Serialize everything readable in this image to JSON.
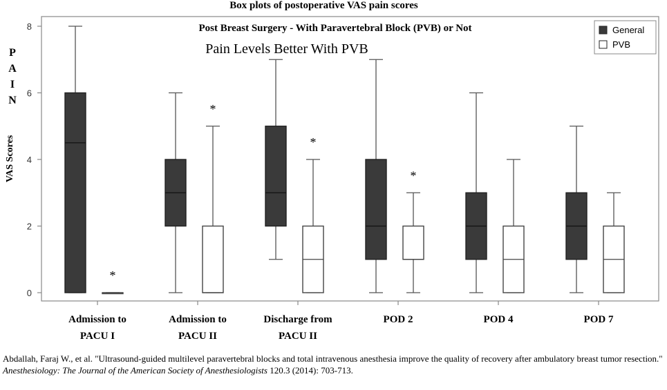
{
  "figure_title": "Box plots of postoperative VAS pain scores",
  "pain_letters": [
    "P",
    "A",
    "I",
    "N"
  ],
  "chart_data": {
    "type": "box",
    "title": "Post Breast Surgery - With Paravertebral Block (PVB) or Not",
    "subtitle": "Pain Levels Better With PVB",
    "ylabel": "VAS Scores",
    "xlabel": "",
    "ylim": [
      0,
      8
    ],
    "yticks": [
      0,
      2,
      4,
      6,
      8
    ],
    "grid": false,
    "legend_position": "top-right",
    "categories": [
      [
        "Admission to",
        "PACU I"
      ],
      [
        "Admission to",
        "PACU II"
      ],
      [
        "Discharge from",
        "PACU II"
      ],
      [
        "POD 2"
      ],
      [
        "POD 4"
      ],
      [
        "POD 7"
      ]
    ],
    "series": [
      {
        "name": "General",
        "color": "#3a3a3a",
        "boxes": [
          {
            "min": 0,
            "q1": 0,
            "median": 4.5,
            "q3": 6,
            "max": 8
          },
          {
            "min": 0,
            "q1": 2,
            "median": 3,
            "q3": 4,
            "max": 6
          },
          {
            "min": 1,
            "q1": 2,
            "median": 3,
            "q3": 5,
            "max": 7
          },
          {
            "min": 0,
            "q1": 1,
            "median": 2,
            "q3": 4,
            "max": 7
          },
          {
            "min": 0,
            "q1": 1,
            "median": 2,
            "q3": 3,
            "max": 6
          },
          {
            "min": 0,
            "q1": 1,
            "median": 2,
            "q3": 3,
            "max": 5
          }
        ]
      },
      {
        "name": "PVB",
        "color": "#ffffff",
        "boxes": [
          {
            "min": 0,
            "q1": 0,
            "median": 0,
            "q3": 0,
            "max": 0
          },
          {
            "min": 0,
            "q1": 0,
            "median": 0,
            "q3": 2,
            "max": 5
          },
          {
            "min": 0,
            "q1": 0,
            "median": 1,
            "q3": 2,
            "max": 4
          },
          {
            "min": 0,
            "q1": 1,
            "median": 1,
            "q3": 2,
            "max": 3
          },
          {
            "min": 0,
            "q1": 0,
            "median": 1,
            "q3": 2,
            "max": 4
          },
          {
            "min": 0,
            "q1": 0,
            "median": 1,
            "q3": 2,
            "max": 3
          }
        ]
      }
    ],
    "significance_markers": [
      {
        "category": 0,
        "series": "PVB",
        "label": "*",
        "y": 0.6
      },
      {
        "category": 1,
        "series": "PVB",
        "label": "*",
        "y": 5.6
      },
      {
        "category": 2,
        "series": "PVB",
        "label": "*",
        "y": 4.6
      },
      {
        "category": 3,
        "series": "PVB",
        "label": "*",
        "y": 3.6
      }
    ]
  },
  "citation": {
    "authors_title": "Abdallah, Faraj W., et al. \"Ultrasound-guided multilevel paravertebral blocks and total intravenous anesthesia improve the quality of recovery after ambulatory breast tumor resection.\"",
    "journal": "Anesthesiology: The Journal of the American Society of Anesthesiologists",
    "details": "120.3 (2014): 703-713."
  }
}
